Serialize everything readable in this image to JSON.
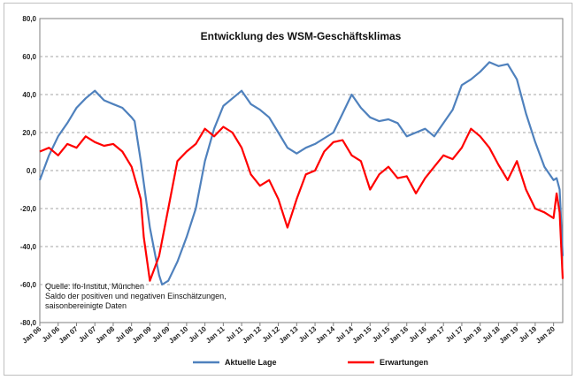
{
  "chart_data": {
    "type": "line",
    "title": "Entwicklung des WSM-Geschäftsklimas",
    "xlabel": "",
    "ylabel": "",
    "ylim": [
      -80,
      80
    ],
    "yticks": [
      -80,
      -60,
      -40,
      -20,
      0,
      20,
      40,
      60,
      80
    ],
    "ytick_labels": [
      "-80,0",
      "-60,0",
      "-40,0",
      "-20,0",
      "0,0",
      "20,0",
      "40,0",
      "60,0",
      "80,0"
    ],
    "x_range": [
      "Jan 06",
      "Apr 20"
    ],
    "xtick_labels": [
      "Jan 06",
      "Jul 06",
      "Jan 07",
      "Jul 07",
      "Jan 08",
      "Jul 08",
      "Jan 09",
      "Jul 09",
      "Jan 10",
      "Jul 10",
      "Jan 11",
      "Jul 11",
      "Jan 12",
      "Jul 12",
      "Jan 13",
      "Jul 13",
      "Jan 14",
      "Jul 14",
      "Jan 15",
      "Jul 15",
      "Jan 16",
      "Jul 16",
      "Jan 17",
      "Jul 17",
      "Jan 18",
      "Jul 18",
      "Jan 19",
      "Jul 19",
      "Jan 20"
    ],
    "grid": true,
    "legend_position": "bottom",
    "annotations": [
      "Quelle: ifo-Institut, München",
      "Saldo der positiven und negativen Einschätzungen,",
      "saisonbereinigte Daten"
    ],
    "series": [
      {
        "name": "Aktuelle Lage",
        "color": "#4f81bd",
        "points": [
          [
            "Jan 06",
            -5
          ],
          [
            "Apr 06",
            8
          ],
          [
            "Jul 06",
            18
          ],
          [
            "Oct 06",
            25
          ],
          [
            "Jan 07",
            33
          ],
          [
            "Apr 07",
            38
          ],
          [
            "Jul 07",
            42
          ],
          [
            "Oct 07",
            37
          ],
          [
            "Jan 08",
            35
          ],
          [
            "Apr 08",
            33
          ],
          [
            "Jul 08",
            28
          ],
          [
            "Aug 08",
            26
          ],
          [
            "Oct 08",
            5
          ],
          [
            "Jan 09",
            -30
          ],
          [
            "Apr 09",
            -55
          ],
          [
            "May 09",
            -60
          ],
          [
            "Jul 09",
            -58
          ],
          [
            "Oct 09",
            -48
          ],
          [
            "Jan 10",
            -35
          ],
          [
            "Apr 10",
            -20
          ],
          [
            "Jul 10",
            5
          ],
          [
            "Oct 10",
            22
          ],
          [
            "Jan 11",
            34
          ],
          [
            "Apr 11",
            38
          ],
          [
            "Jul 11",
            42
          ],
          [
            "Oct 11",
            35
          ],
          [
            "Jan 12",
            32
          ],
          [
            "Apr 12",
            28
          ],
          [
            "Jul 12",
            20
          ],
          [
            "Oct 12",
            12
          ],
          [
            "Jan 13",
            9
          ],
          [
            "Apr 13",
            12
          ],
          [
            "Jul 13",
            14
          ],
          [
            "Oct 13",
            17
          ],
          [
            "Jan 14",
            20
          ],
          [
            "Apr 14",
            30
          ],
          [
            "Jul 14",
            40
          ],
          [
            "Oct 14",
            33
          ],
          [
            "Jan 15",
            28
          ],
          [
            "Apr 15",
            26
          ],
          [
            "Jul 15",
            27
          ],
          [
            "Oct 15",
            25
          ],
          [
            "Jan 16",
            18
          ],
          [
            "Apr 16",
            20
          ],
          [
            "Jul 16",
            22
          ],
          [
            "Oct 16",
            18
          ],
          [
            "Jan 17",
            25
          ],
          [
            "Apr 17",
            32
          ],
          [
            "Jul 17",
            45
          ],
          [
            "Oct 17",
            48
          ],
          [
            "Jan 18",
            52
          ],
          [
            "Apr 18",
            57
          ],
          [
            "Jul 18",
            55
          ],
          [
            "Oct 18",
            56
          ],
          [
            "Jan 19",
            48
          ],
          [
            "Apr 19",
            30
          ],
          [
            "Jul 19",
            15
          ],
          [
            "Oct 19",
            2
          ],
          [
            "Jan 20",
            -5
          ],
          [
            "Feb 20",
            -4
          ],
          [
            "Mar 20",
            -10
          ],
          [
            "Apr 20",
            -45
          ]
        ]
      },
      {
        "name": "Erwartungen",
        "color": "#ff0000",
        "points": [
          [
            "Jan 06",
            10
          ],
          [
            "Apr 06",
            12
          ],
          [
            "Jul 06",
            8
          ],
          [
            "Oct 06",
            14
          ],
          [
            "Jan 07",
            12
          ],
          [
            "Apr 07",
            18
          ],
          [
            "Jul 07",
            15
          ],
          [
            "Oct 07",
            13
          ],
          [
            "Jan 08",
            14
          ],
          [
            "Apr 08",
            10
          ],
          [
            "Jul 08",
            2
          ],
          [
            "Oct 08",
            -15
          ],
          [
            "Nov 08",
            -35
          ],
          [
            "Jan 09",
            -58
          ],
          [
            "Apr 09",
            -45
          ],
          [
            "Jul 09",
            -20
          ],
          [
            "Oct 09",
            5
          ],
          [
            "Jan 10",
            10
          ],
          [
            "Apr 10",
            14
          ],
          [
            "Jul 10",
            22
          ],
          [
            "Oct 10",
            18
          ],
          [
            "Jan 11",
            23
          ],
          [
            "Apr 11",
            20
          ],
          [
            "Jul 11",
            12
          ],
          [
            "Oct 11",
            -2
          ],
          [
            "Jan 12",
            -8
          ],
          [
            "Apr 12",
            -5
          ],
          [
            "Jul 12",
            -15
          ],
          [
            "Oct 12",
            -30
          ],
          [
            "Jan 13",
            -15
          ],
          [
            "Apr 13",
            -2
          ],
          [
            "Jul 13",
            0
          ],
          [
            "Oct 13",
            10
          ],
          [
            "Jan 14",
            15
          ],
          [
            "Apr 14",
            16
          ],
          [
            "Jul 14",
            8
          ],
          [
            "Oct 14",
            5
          ],
          [
            "Jan 15",
            -10
          ],
          [
            "Apr 15",
            -2
          ],
          [
            "Jul 15",
            2
          ],
          [
            "Oct 15",
            -4
          ],
          [
            "Jan 16",
            -3
          ],
          [
            "Apr 16",
            -12
          ],
          [
            "Jul 16",
            -4
          ],
          [
            "Oct 16",
            2
          ],
          [
            "Jan 17",
            8
          ],
          [
            "Apr 17",
            6
          ],
          [
            "Jul 17",
            12
          ],
          [
            "Oct 17",
            22
          ],
          [
            "Jan 18",
            18
          ],
          [
            "Apr 18",
            12
          ],
          [
            "Jul 18",
            3
          ],
          [
            "Oct 18",
            -5
          ],
          [
            "Jan 19",
            5
          ],
          [
            "Apr 19",
            -10
          ],
          [
            "Jul 19",
            -20
          ],
          [
            "Oct 19",
            -22
          ],
          [
            "Jan 20",
            -25
          ],
          [
            "Feb 20",
            -12
          ],
          [
            "Mar 20",
            -22
          ],
          [
            "Apr 20",
            -57
          ]
        ]
      }
    ]
  }
}
